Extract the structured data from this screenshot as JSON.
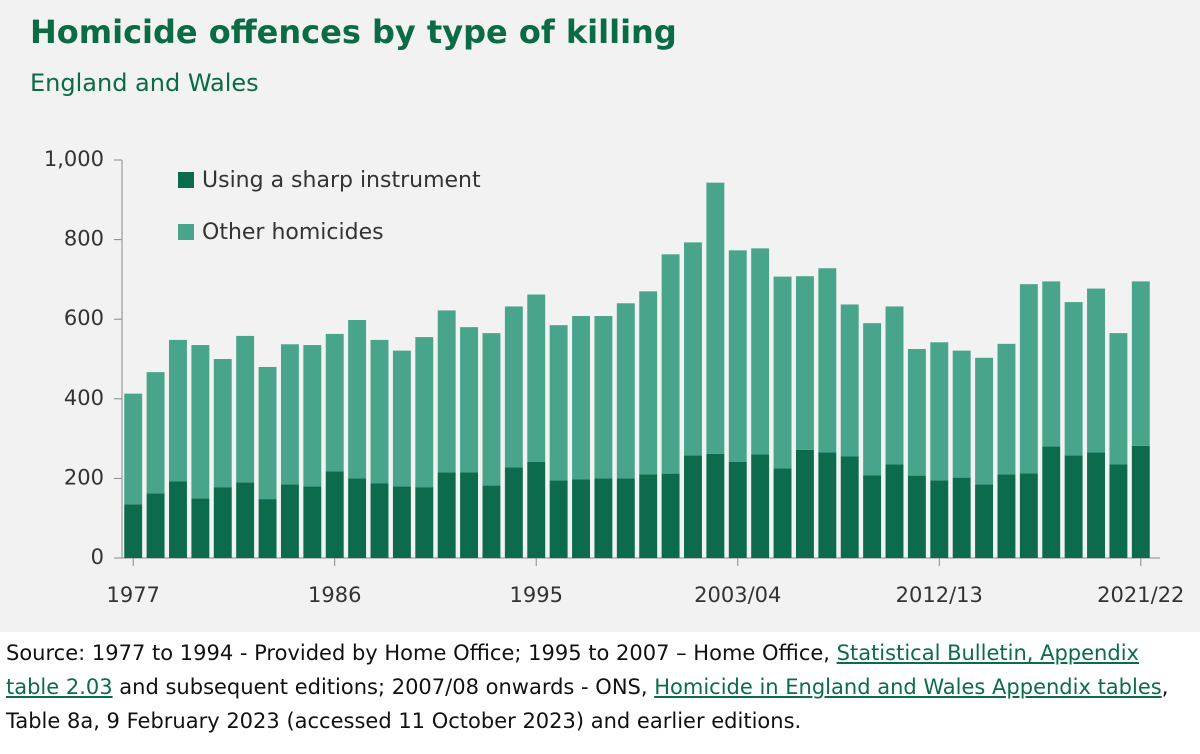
{
  "chart_data": {
    "type": "stacked-bar",
    "title": "Homicide offences by type of killing",
    "subtitle": "England and Wales",
    "categories": [
      "1977",
      null,
      null,
      null,
      null,
      null,
      null,
      null,
      null,
      "1986",
      null,
      null,
      null,
      null,
      null,
      null,
      null,
      null,
      "1995",
      null,
      null,
      null,
      null,
      null,
      null,
      null,
      null,
      "2003/04",
      null,
      null,
      null,
      null,
      null,
      null,
      null,
      null,
      "2012/13",
      null,
      null,
      null,
      null,
      null,
      null,
      null,
      null,
      "2021/22"
    ],
    "series": [
      {
        "name": "Using a sharp instrument",
        "color": "#0b6b4c",
        "values": [
          135,
          162,
          193,
          150,
          178,
          190,
          148,
          185,
          180,
          218,
          200,
          188,
          180,
          178,
          215,
          215,
          182,
          228,
          242,
          195,
          198,
          200,
          200,
          210,
          212,
          258,
          262,
          242,
          260,
          225,
          272,
          265,
          255,
          208,
          235,
          207,
          195,
          202,
          185,
          210,
          213,
          280,
          258,
          265,
          235,
          282
        ]
      },
      {
        "name": "Other homicides",
        "color": "#48a58b",
        "values": [
          278,
          305,
          355,
          385,
          322,
          368,
          332,
          352,
          355,
          345,
          398,
          360,
          341,
          377,
          407,
          365,
          383,
          404,
          420,
          390,
          410,
          408,
          440,
          460,
          551,
          535,
          681,
          531,
          518,
          482,
          436,
          463,
          382,
          382,
          397,
          318,
          347,
          319,
          318,
          328,
          475,
          415,
          385,
          412,
          330,
          413
        ]
      }
    ],
    "ylim": [
      0,
      1000
    ],
    "yticks": [
      0,
      200,
      400,
      600,
      800,
      {
        "value": 1000,
        "label": "1,000"
      }
    ],
    "grid": false,
    "legend": "top-left",
    "source": [
      {
        "text": "Source: 1977 to 1994 - Provided by Home Office; 1995 to 2007 – Home Office, ",
        "link": false
      },
      {
        "text": "Statistical Bulletin, Appendix table 2.03",
        "link": true
      },
      {
        "text": " and subsequent editions; 2007/08 onwards - ONS, ",
        "link": false
      },
      {
        "text": "Homicide in England and Wales Appendix tables",
        "link": true
      },
      {
        "text": ", Table 8a, 9 February 2023 (accessed 11 October 2023) and earlier editions.",
        "link": false
      }
    ]
  }
}
